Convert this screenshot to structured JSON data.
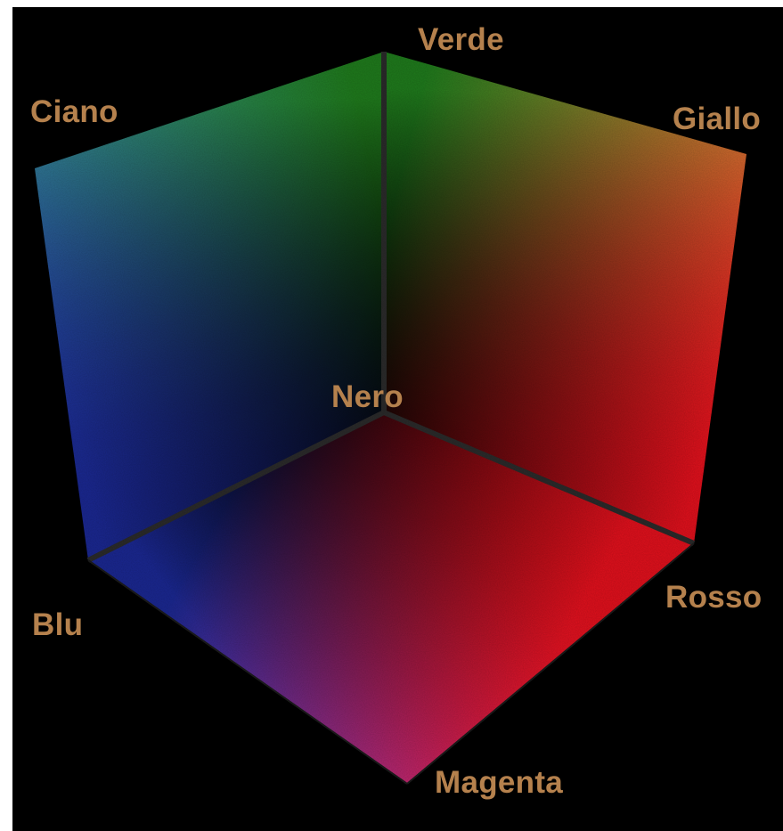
{
  "diagram": {
    "label_color": "#b5814d",
    "background": "#000000",
    "corners": {
      "verde": {
        "label": "Verde",
        "color": "#1f7a1c"
      },
      "ciano": {
        "label": "Ciano",
        "color": "#1d87c6"
      },
      "giallo": {
        "label": "Giallo",
        "color": "#d3c229"
      },
      "nero": {
        "label": "Nero",
        "color": "#000000"
      },
      "rosso": {
        "label": "Rosso",
        "color": "#e0101c"
      },
      "blu": {
        "label": "Blu",
        "color": "#1a2790"
      },
      "magenta": {
        "label": "Magenta",
        "color": "#d4285d"
      }
    }
  }
}
